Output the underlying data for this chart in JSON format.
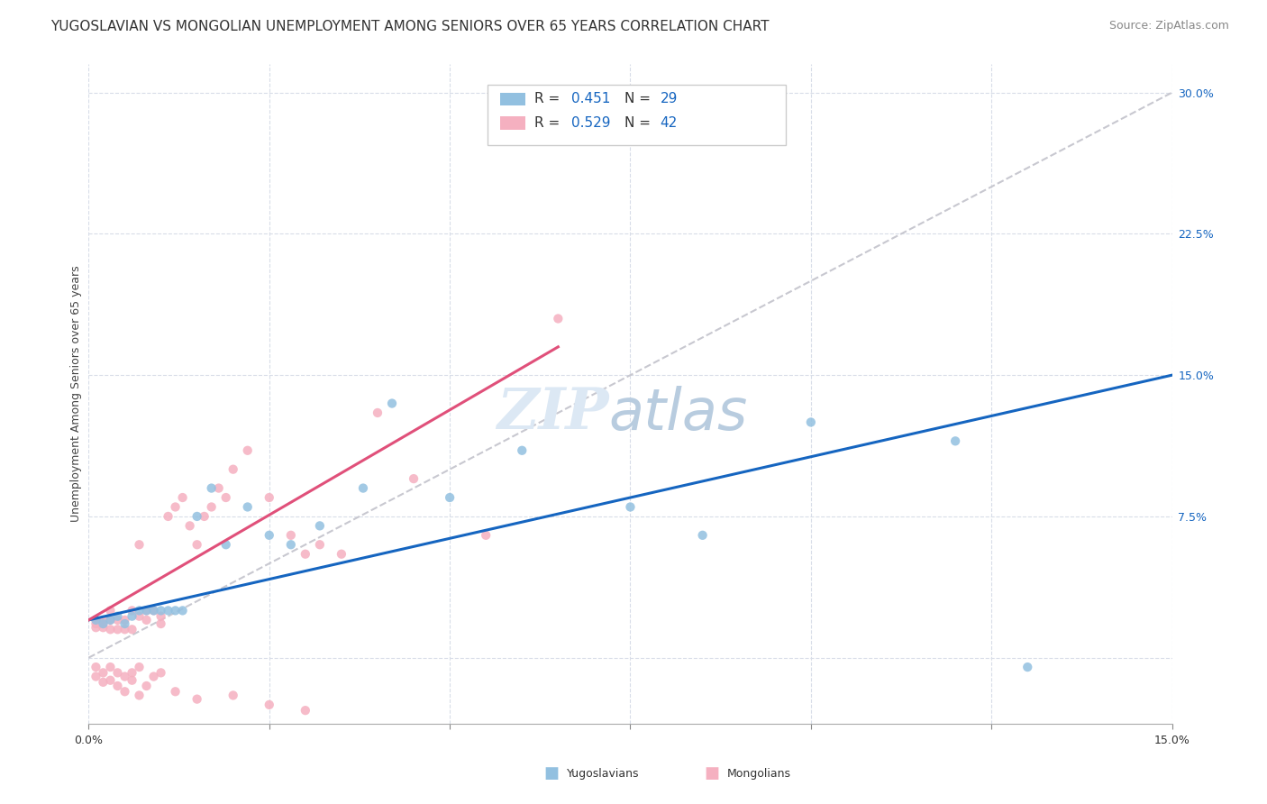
{
  "title": "YUGOSLAVIAN VS MONGOLIAN UNEMPLOYMENT AMONG SENIORS OVER 65 YEARS CORRELATION CHART",
  "source": "Source: ZipAtlas.com",
  "ylabel": "Unemployment Among Seniors over 65 years",
  "xlim": [
    0.0,
    0.15
  ],
  "ylim": [
    -0.035,
    0.315
  ],
  "ytick_vals": [
    0.0,
    0.075,
    0.15,
    0.225,
    0.3
  ],
  "ytick_labels": [
    "",
    "7.5%",
    "15.0%",
    "22.5%",
    "30.0%"
  ],
  "xtick_vals": [
    0.0,
    0.025,
    0.05,
    0.075,
    0.1,
    0.125,
    0.15
  ],
  "yug_color": "#92C0E0",
  "mon_color": "#F5B0C0",
  "blue_line_color": "#1565C0",
  "pink_line_color": "#E0507A",
  "diagonal_color": "#C8C8D0",
  "bg_color": "#ffffff",
  "grid_color": "#D8DDE8",
  "yug_scatter_x": [
    0.001,
    0.002,
    0.003,
    0.004,
    0.005,
    0.006,
    0.007,
    0.008,
    0.009,
    0.01,
    0.011,
    0.012,
    0.013,
    0.015,
    0.017,
    0.019,
    0.022,
    0.025,
    0.028,
    0.032,
    0.038,
    0.042,
    0.05,
    0.06,
    0.075,
    0.085,
    0.1,
    0.12,
    0.13
  ],
  "yug_scatter_y": [
    0.02,
    0.018,
    0.02,
    0.022,
    0.018,
    0.022,
    0.025,
    0.025,
    0.025,
    0.025,
    0.025,
    0.025,
    0.025,
    0.075,
    0.09,
    0.06,
    0.08,
    0.065,
    0.06,
    0.07,
    0.09,
    0.135,
    0.085,
    0.11,
    0.08,
    0.065,
    0.125,
    0.115,
    -0.005
  ],
  "mon_scatter_x": [
    0.001,
    0.001,
    0.001,
    0.002,
    0.002,
    0.002,
    0.003,
    0.003,
    0.003,
    0.004,
    0.004,
    0.005,
    0.005,
    0.006,
    0.006,
    0.007,
    0.007,
    0.008,
    0.008,
    0.009,
    0.01,
    0.01,
    0.011,
    0.012,
    0.013,
    0.014,
    0.015,
    0.016,
    0.017,
    0.018,
    0.019,
    0.02,
    0.022,
    0.025,
    0.028,
    0.03,
    0.032,
    0.035,
    0.04,
    0.045,
    0.055,
    0.065
  ],
  "mon_scatter_y": [
    0.02,
    0.018,
    0.016,
    0.02,
    0.018,
    0.016,
    0.025,
    0.02,
    0.015,
    0.02,
    0.015,
    0.02,
    0.015,
    0.025,
    0.015,
    0.06,
    0.022,
    0.025,
    0.02,
    0.025,
    0.022,
    0.018,
    0.075,
    0.08,
    0.085,
    0.07,
    0.06,
    0.075,
    0.08,
    0.09,
    0.085,
    0.1,
    0.11,
    0.085,
    0.065,
    0.055,
    0.06,
    0.055,
    0.13,
    0.095,
    0.065,
    0.18
  ],
  "mon_scatter_below": [
    [
      0.001,
      -0.005
    ],
    [
      0.001,
      -0.01
    ],
    [
      0.002,
      -0.008
    ],
    [
      0.002,
      -0.013
    ],
    [
      0.003,
      -0.005
    ],
    [
      0.003,
      -0.012
    ],
    [
      0.004,
      -0.008
    ],
    [
      0.004,
      -0.015
    ],
    [
      0.005,
      -0.01
    ],
    [
      0.005,
      -0.018
    ],
    [
      0.006,
      -0.012
    ],
    [
      0.006,
      -0.008
    ],
    [
      0.007,
      -0.005
    ],
    [
      0.007,
      -0.02
    ],
    [
      0.008,
      -0.015
    ],
    [
      0.009,
      -0.01
    ],
    [
      0.01,
      -0.008
    ],
    [
      0.012,
      -0.018
    ],
    [
      0.015,
      -0.022
    ],
    [
      0.02,
      -0.02
    ],
    [
      0.025,
      -0.025
    ],
    [
      0.03,
      -0.028
    ]
  ],
  "title_fontsize": 11,
  "source_fontsize": 9,
  "label_fontsize": 9,
  "tick_fontsize": 9,
  "legend_fontsize": 11
}
